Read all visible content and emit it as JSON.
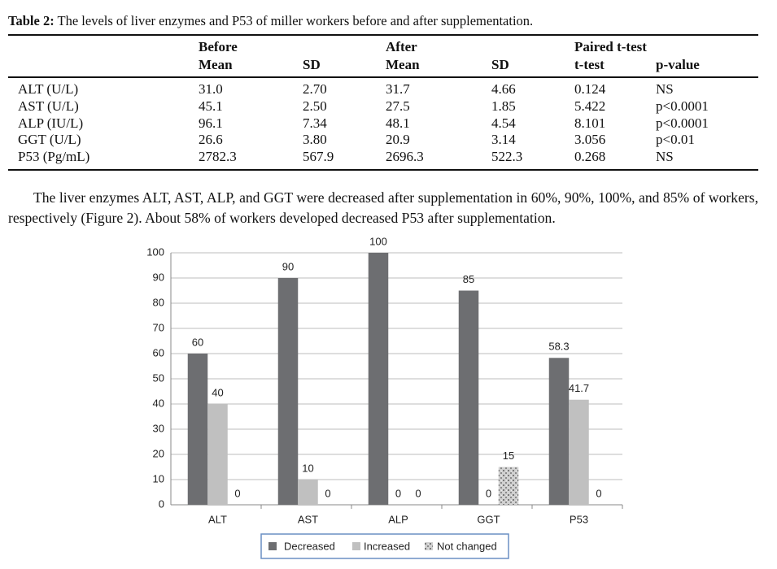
{
  "caption": {
    "label": "Table 2:",
    "text": "The levels of liver enzymes and P53 of miller workers before and after supplementation."
  },
  "table": {
    "group_headers": [
      "Before",
      "After",
      "Paired t-test"
    ],
    "headers": [
      "Mean",
      "SD",
      "Mean",
      "SD",
      "t-test",
      "p-value"
    ],
    "rows": [
      [
        "ALT (U/L)",
        "31.0",
        "2.70",
        "31.7",
        "4.66",
        "0.124",
        "NS"
      ],
      [
        "AST (U/L)",
        "45.1",
        "2.50",
        "27.5",
        "1.85",
        "5.422",
        "p<0.0001"
      ],
      [
        "ALP (IU/L)",
        "96.1",
        "7.34",
        "48.1",
        "4.54",
        "8.101",
        "p<0.0001"
      ],
      [
        "GGT (U/L)",
        "26.6",
        "3.80",
        "20.9",
        "3.14",
        "3.056",
        "p<0.01"
      ],
      [
        "P53 (Pg/mL)",
        "2782.3",
        "567.9",
        "2696.3",
        "522.3",
        "0.268",
        "NS"
      ]
    ]
  },
  "paragraph": "The liver enzymes ALT, AST, ALP, and GGT were decreased after supplementation in 60%, 90%, 100%, and 85% of workers, respectively (Figure 2). About 58% of workers developed decreased P53 after supplementation.",
  "chart_data": {
    "type": "bar",
    "categories": [
      "ALT",
      "AST",
      "ALP",
      "GGT",
      "P53"
    ],
    "series": [
      {
        "name": "Decreased",
        "color": "#6d6e71",
        "values": [
          60,
          90,
          100,
          85,
          58.3
        ]
      },
      {
        "name": "Increased",
        "color": "#c0c0c0",
        "values": [
          40,
          10,
          0,
          0,
          41.7
        ]
      },
      {
        "name": "Not changed",
        "color": "#a4a4a4",
        "values": [
          0,
          0,
          0,
          15,
          0
        ]
      }
    ],
    "ylim": [
      0,
      100
    ],
    "yticks": [
      0,
      10,
      20,
      30,
      40,
      50,
      60,
      70,
      80,
      90,
      100
    ],
    "grid": true,
    "legend": "bottom"
  }
}
